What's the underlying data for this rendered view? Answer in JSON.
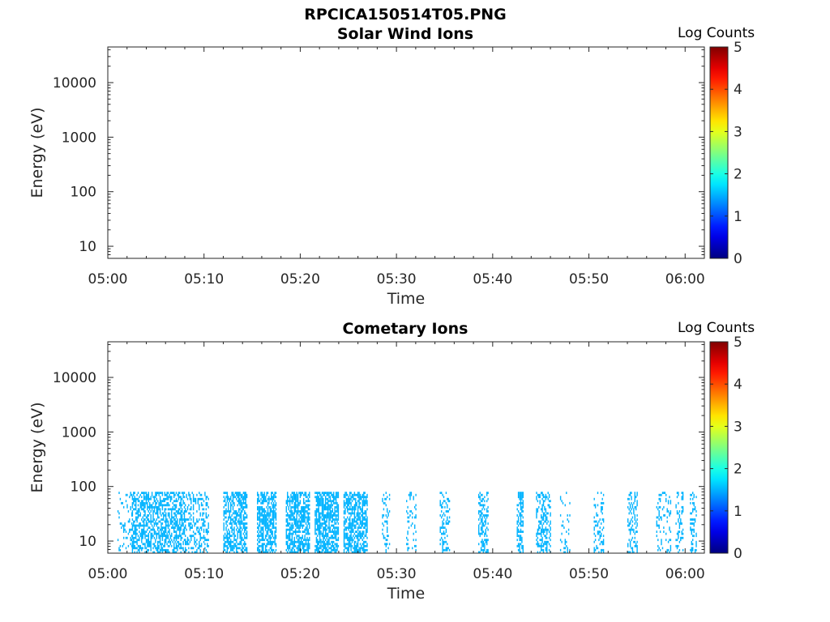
{
  "figure": {
    "title": "RPCICA150514T05.PNG"
  },
  "chart_data": [
    {
      "type": "heatmap",
      "title": "Solar Wind Ions",
      "xlabel": "Time",
      "ylabel": "Energy (eV)",
      "x_ticks": [
        "05:00",
        "05:10",
        "05:20",
        "05:30",
        "05:40",
        "05:50",
        "06:00"
      ],
      "xlim_minutes": [
        0,
        62
      ],
      "y_scale": "log",
      "y_ticks": [
        10,
        100,
        1000,
        10000
      ],
      "y_tick_labels": [
        "10",
        "100",
        "1000",
        "10000"
      ],
      "ylim": [
        6,
        45000
      ],
      "colorbar": {
        "label": "Log Counts",
        "min": 0,
        "max": 5,
        "ticks": [
          "0",
          "1",
          "2",
          "3",
          "4",
          "5"
        ],
        "colormap": "jet"
      },
      "bursts": []
    },
    {
      "type": "heatmap",
      "title": "Cometary Ions",
      "xlabel": "Time",
      "ylabel": "Energy (eV)",
      "x_ticks": [
        "05:00",
        "05:10",
        "05:20",
        "05:30",
        "05:40",
        "05:50",
        "06:00"
      ],
      "xlim_minutes": [
        0,
        62
      ],
      "y_scale": "log",
      "y_ticks": [
        10,
        100,
        1000,
        10000
      ],
      "y_tick_labels": [
        "10",
        "100",
        "1000",
        "10000"
      ],
      "ylim": [
        6,
        45000
      ],
      "colorbar": {
        "label": "Log Counts",
        "min": 0,
        "max": 5,
        "ticks": [
          "0",
          "1",
          "2",
          "3",
          "4",
          "5"
        ],
        "colormap": "jet"
      },
      "data_color_level": 0.3,
      "energy_range_eV": [
        6,
        80
      ],
      "bursts": [
        {
          "start_min": 1.0,
          "end_min": 2.5,
          "density": 0.18
        },
        {
          "start_min": 2.5,
          "end_min": 5.5,
          "density": 0.55
        },
        {
          "start_min": 5.5,
          "end_min": 8.0,
          "density": 0.55
        },
        {
          "start_min": 8.0,
          "end_min": 10.5,
          "density": 0.35
        },
        {
          "start_min": 12.0,
          "end_min": 14.5,
          "density": 0.6
        },
        {
          "start_min": 15.5,
          "end_min": 17.5,
          "density": 0.65
        },
        {
          "start_min": 18.5,
          "end_min": 21.0,
          "density": 0.65
        },
        {
          "start_min": 21.5,
          "end_min": 24.0,
          "density": 0.7
        },
        {
          "start_min": 24.5,
          "end_min": 27.0,
          "density": 0.65
        },
        {
          "start_min": 28.5,
          "end_min": 29.3,
          "density": 0.2
        },
        {
          "start_min": 31.0,
          "end_min": 32.0,
          "density": 0.22
        },
        {
          "start_min": 34.5,
          "end_min": 35.5,
          "density": 0.25
        },
        {
          "start_min": 38.5,
          "end_min": 39.5,
          "density": 0.45
        },
        {
          "start_min": 42.5,
          "end_min": 43.2,
          "density": 0.45
        },
        {
          "start_min": 44.5,
          "end_min": 46.0,
          "density": 0.4
        },
        {
          "start_min": 47.0,
          "end_min": 48.0,
          "density": 0.15
        },
        {
          "start_min": 50.5,
          "end_min": 51.5,
          "density": 0.35
        },
        {
          "start_min": 54.0,
          "end_min": 55.0,
          "density": 0.35
        },
        {
          "start_min": 57.0,
          "end_min": 58.5,
          "density": 0.2
        },
        {
          "start_min": 59.0,
          "end_min": 59.8,
          "density": 0.25
        },
        {
          "start_min": 60.5,
          "end_min": 61.2,
          "density": 0.3
        }
      ]
    }
  ]
}
